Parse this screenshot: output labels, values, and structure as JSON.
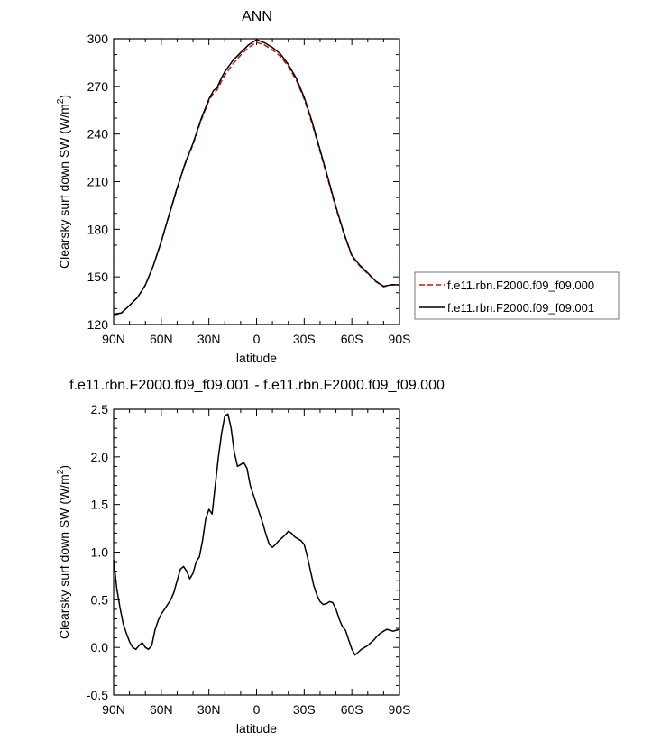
{
  "colors": {
    "control": "#cc1111",
    "test": "#000000",
    "diff": "#000000",
    "axis": "#000000"
  },
  "chart_data": [
    {
      "type": "line",
      "title": "ANN",
      "xlabel": "latitude",
      "ylabel": "Clearsky surf down SW (W/m",
      "ylabel_sup": "2",
      "ylabel_close": ")",
      "x_ticks": [
        -90,
        -60,
        -30,
        0,
        30,
        60,
        90
      ],
      "x_tick_labels": [
        "90N",
        "60N",
        "30N",
        "0",
        "30S",
        "60S",
        "90S"
      ],
      "y_ticks": [
        120,
        150,
        180,
        210,
        240,
        270,
        300
      ],
      "y_tick_labels": [
        "120",
        "150",
        "180",
        "210",
        "240",
        "270",
        "300"
      ],
      "xlim": [
        -90,
        90
      ],
      "ylim": [
        120,
        300
      ],
      "legend_position": "right",
      "series": [
        {
          "name": "f.e11.rbn.F2000.f09_f09.000",
          "style": "dashed",
          "x": [
            -90,
            -85,
            -80,
            -75,
            -70,
            -65,
            -60,
            -55,
            -50,
            -45,
            -40,
            -35,
            -30,
            -27,
            -25,
            -22,
            -20,
            -15,
            -10,
            -5,
            0,
            5,
            10,
            15,
            20,
            25,
            30,
            35,
            40,
            45,
            50,
            55,
            60,
            65,
            70,
            75,
            80,
            85,
            90
          ],
          "y": [
            125.8,
            127.3,
            132.0,
            137.0,
            144.8,
            157.0,
            172.0,
            189.0,
            205.5,
            221.0,
            233.5,
            248.5,
            261.0,
            266.0,
            267.5,
            273.5,
            277.0,
            284.0,
            289.8,
            294.5,
            297.8,
            296.0,
            293.0,
            289.0,
            282.5,
            274.0,
            262.0,
            246.5,
            229.0,
            211.0,
            193.0,
            177.0,
            163.0,
            156.8,
            152.0,
            147.0,
            143.8,
            145.0,
            144.8
          ]
        },
        {
          "name": "f.e11.rbn.F2000.f09_f09.001",
          "style": "solid",
          "x": [
            -90,
            -85,
            -80,
            -75,
            -70,
            -65,
            -60,
            -55,
            -50,
            -45,
            -40,
            -35,
            -30,
            -27,
            -25,
            -22,
            -20,
            -15,
            -10,
            -5,
            0,
            5,
            10,
            15,
            20,
            25,
            30,
            35,
            40,
            45,
            50,
            55,
            60,
            65,
            70,
            75,
            80,
            85,
            90
          ],
          "y": [
            126.5,
            127.3,
            132.0,
            137.0,
            144.8,
            157.0,
            172.3,
            189.3,
            206.0,
            221.6,
            234.2,
            249.3,
            262.0,
            267.5,
            269.0,
            275.5,
            279.3,
            286.2,
            291.3,
            296.2,
            299.4,
            297.5,
            294.5,
            290.5,
            283.8,
            275.2,
            263.2,
            247.7,
            230.1,
            212.0,
            194.0,
            177.6,
            163.5,
            157.3,
            152.5,
            147.3,
            144.1,
            145.1,
            145.0
          ]
        }
      ]
    },
    {
      "type": "line",
      "title": "f.e11.rbn.F2000.f09_f09.001 - f.e11.rbn.F2000.f09_f09.000",
      "xlabel": "latitude",
      "ylabel": "Clearsky surf down SW (W/m",
      "ylabel_sup": "2",
      "ylabel_close": ")",
      "x_ticks": [
        -90,
        -60,
        -30,
        0,
        30,
        60,
        90
      ],
      "x_tick_labels": [
        "90N",
        "60N",
        "30N",
        "0",
        "30S",
        "60S",
        "90S"
      ],
      "y_ticks": [
        -0.5,
        0.0,
        0.5,
        1.0,
        1.5,
        2.0,
        2.5
      ],
      "y_tick_labels": [
        "-0.5",
        "0.0",
        "0.5",
        "1.0",
        "1.5",
        "2.0",
        "2.5"
      ],
      "xlim": [
        -90,
        90
      ],
      "ylim": [
        -0.5,
        2.5
      ],
      "series": [
        {
          "name": "",
          "style": "solid",
          "x": [
            -90,
            -88,
            -86,
            -84,
            -82,
            -80,
            -78,
            -76,
            -74,
            -72,
            -70,
            -68,
            -66,
            -64,
            -62,
            -60,
            -58,
            -56,
            -54,
            -52,
            -50,
            -48,
            -46,
            -44,
            -42,
            -40,
            -38,
            -36,
            -34,
            -32,
            -30,
            -28,
            -26,
            -24,
            -22,
            -20,
            -18,
            -16,
            -14,
            -12,
            -10,
            -8,
            -6,
            -4,
            -2,
            0,
            2,
            4,
            6,
            8,
            10,
            12,
            14,
            16,
            18,
            20,
            22,
            24,
            26,
            28,
            30,
            32,
            34,
            36,
            38,
            40,
            42,
            44,
            46,
            48,
            50,
            52,
            54,
            56,
            58,
            60,
            62,
            64,
            66,
            68,
            70,
            72,
            74,
            76,
            78,
            80,
            82,
            84,
            86,
            88,
            90
          ],
          "y": [
            0.92,
            0.62,
            0.42,
            0.25,
            0.15,
            0.06,
            0.0,
            -0.02,
            0.02,
            0.05,
            0.0,
            -0.02,
            0.02,
            0.18,
            0.28,
            0.35,
            0.4,
            0.45,
            0.5,
            0.58,
            0.7,
            0.82,
            0.85,
            0.8,
            0.72,
            0.78,
            0.9,
            0.95,
            1.12,
            1.35,
            1.45,
            1.4,
            1.7,
            2.0,
            2.25,
            2.43,
            2.45,
            2.3,
            2.05,
            1.9,
            1.92,
            1.94,
            1.88,
            1.7,
            1.6,
            1.5,
            1.4,
            1.3,
            1.18,
            1.08,
            1.05,
            1.08,
            1.12,
            1.15,
            1.18,
            1.22,
            1.2,
            1.16,
            1.14,
            1.12,
            1.08,
            0.95,
            0.8,
            0.65,
            0.55,
            0.48,
            0.45,
            0.46,
            0.48,
            0.47,
            0.4,
            0.3,
            0.22,
            0.18,
            0.08,
            -0.02,
            -0.08,
            -0.05,
            -0.02,
            0.0,
            0.02,
            0.05,
            0.08,
            0.12,
            0.15,
            0.17,
            0.19,
            0.18,
            0.17,
            0.18,
            0.19
          ]
        }
      ]
    }
  ]
}
